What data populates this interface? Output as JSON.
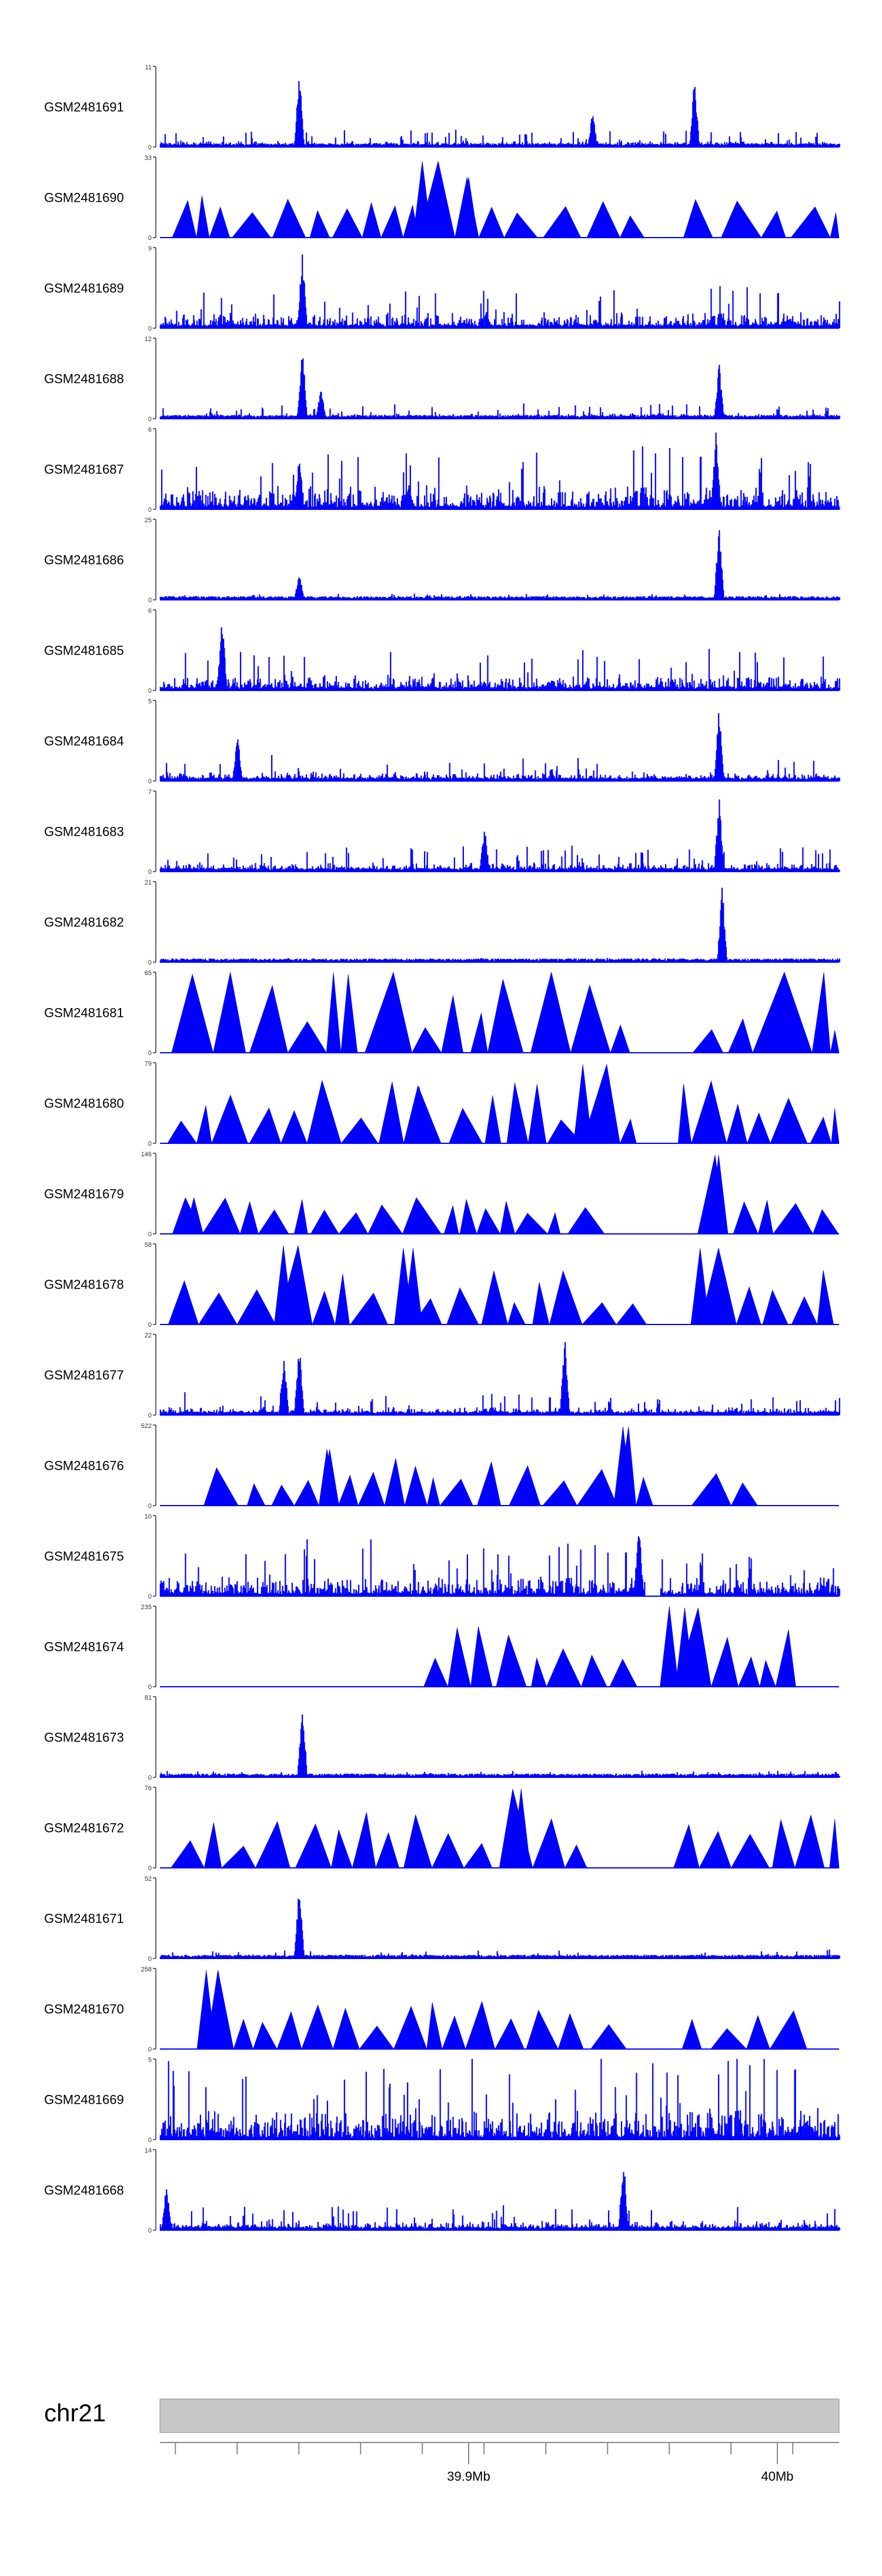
{
  "chart_data": {
    "type": "area",
    "chromosome": "chr21",
    "genome_axis": {
      "range": [
        39.8,
        40.02
      ],
      "unit": "Mb",
      "labeled_ticks": [
        39.9,
        40.0
      ],
      "labels": [
        "39.9Mb",
        "40Mb"
      ],
      "minor_ticks": [
        39.805,
        39.825,
        39.845,
        39.865,
        39.885,
        39.905,
        39.925,
        39.945,
        39.965,
        39.985,
        40.005,
        40.025
      ]
    },
    "tracks": [
      {
        "name": "GSM2481691",
        "ymax": 11,
        "ymin": 0,
        "style": "dense",
        "seed": 91,
        "noise": 0.08,
        "peaks": [
          [
            39.845,
            1.0
          ],
          [
            39.973,
            0.9
          ],
          [
            39.94,
            0.45
          ]
        ],
        "gaps": []
      },
      {
        "name": "GSM2481690",
        "ymax": 33,
        "ymin": 0,
        "style": "triangles",
        "seed": 90,
        "noise": 0.3,
        "peaks": [
          [
            39.885,
            0.95
          ],
          [
            39.9,
            0.75
          ]
        ],
        "gaps": [
          [
            39.958,
            39.968
          ]
        ]
      },
      {
        "name": "GSM2481689",
        "ymax": 9,
        "ymin": 0,
        "style": "dense",
        "seed": 89,
        "noise": 0.2,
        "peaks": [
          [
            39.846,
            0.95
          ]
        ],
        "gaps": []
      },
      {
        "name": "GSM2481688",
        "ymax": 12,
        "ymin": 0,
        "style": "dense",
        "seed": 88,
        "noise": 0.07,
        "peaks": [
          [
            39.846,
            0.98
          ],
          [
            39.981,
            0.72
          ],
          [
            39.852,
            0.4
          ]
        ],
        "gaps": []
      },
      {
        "name": "GSM2481687",
        "ymax": 6,
        "ymin": 0,
        "style": "dense",
        "seed": 87,
        "noise": 0.3,
        "peaks": [
          [
            39.98,
            0.98
          ],
          [
            39.845,
            0.7
          ]
        ],
        "gaps": []
      },
      {
        "name": "GSM2481686",
        "ymax": 25,
        "ymin": 0,
        "style": "dense",
        "seed": 86,
        "noise": 0.03,
        "peaks": [
          [
            39.981,
            0.98
          ],
          [
            39.845,
            0.35
          ]
        ],
        "gaps": []
      },
      {
        "name": "GSM2481685",
        "ymax": 6,
        "ymin": 0,
        "style": "dense",
        "seed": 85,
        "noise": 0.2,
        "peaks": [
          [
            39.82,
            0.95
          ]
        ],
        "gaps": []
      },
      {
        "name": "GSM2481684",
        "ymax": 5,
        "ymin": 0,
        "style": "dense",
        "seed": 84,
        "noise": 0.12,
        "peaks": [
          [
            39.981,
            0.98
          ],
          [
            39.825,
            0.6
          ]
        ],
        "gaps": []
      },
      {
        "name": "GSM2481683",
        "ymax": 7,
        "ymin": 0,
        "style": "dense",
        "seed": 83,
        "noise": 0.12,
        "peaks": [
          [
            39.981,
            0.95
          ],
          [
            39.905,
            0.6
          ]
        ],
        "gaps": []
      },
      {
        "name": "GSM2481682",
        "ymax": 21,
        "ymin": 0,
        "style": "dense",
        "seed": 82,
        "noise": 0.02,
        "peaks": [
          [
            39.982,
            0.98
          ]
        ],
        "gaps": []
      },
      {
        "name": "GSM2481681",
        "ymax": 65,
        "ymin": 0,
        "style": "triangles",
        "seed": 81,
        "noise": 1.0,
        "peaks": [],
        "gaps": [
          [
            39.958,
            39.97
          ]
        ]
      },
      {
        "name": "GSM2481680",
        "ymax": 79,
        "ymin": 0,
        "style": "triangles",
        "seed": 80,
        "noise": 0.55,
        "peaks": [
          [
            39.937,
            0.98
          ],
          [
            39.884,
            0.7
          ]
        ],
        "gaps": [
          [
            39.96,
            39.967
          ]
        ]
      },
      {
        "name": "GSM2481679",
        "ymax": 146,
        "ymin": 0,
        "style": "triangles",
        "seed": 79,
        "noise": 0.2,
        "peaks": [
          [
            39.981,
            0.98
          ],
          [
            39.811,
            0.45
          ]
        ],
        "gaps": [
          [
            39.945,
            39.972
          ]
        ]
      },
      {
        "name": "GSM2481678",
        "ymax": 58,
        "ymin": 0,
        "style": "triangles",
        "seed": 78,
        "noise": 0.5,
        "peaks": [
          [
            39.84,
            0.98
          ],
          [
            39.882,
            0.95
          ],
          [
            39.975,
            0.95
          ]
        ],
        "gaps": [
          [
            39.96,
            39.968
          ]
        ]
      },
      {
        "name": "GSM2481677",
        "ymax": 22,
        "ymin": 0,
        "style": "dense",
        "seed": 77,
        "noise": 0.1,
        "peaks": [
          [
            39.931,
            0.98
          ],
          [
            39.84,
            0.8
          ],
          [
            39.845,
            0.95
          ]
        ],
        "gaps": []
      },
      {
        "name": "GSM2481676",
        "ymax": 522,
        "ymin": 0,
        "style": "triangles",
        "seed": 76,
        "noise": 0.35,
        "peaks": [
          [
            39.95,
            0.98
          ],
          [
            39.855,
            0.7
          ]
        ],
        "gaps": [
          [
            39.8,
            39.81
          ],
          [
            39.963,
            39.968
          ],
          [
            39.995,
            40.02
          ]
        ]
      },
      {
        "name": "GSM2481675",
        "ymax": 10,
        "ymin": 0,
        "style": "dense",
        "seed": 75,
        "noise": 0.25,
        "peaks": [
          [
            39.955,
            0.95
          ]
        ],
        "gaps": [
          [
            39.957,
            39.962
          ]
        ]
      },
      {
        "name": "GSM2481674",
        "ymax": 235,
        "ymin": 0,
        "style": "triangles",
        "seed": 74,
        "noise": 0.5,
        "peaks": [
          [
            39.965,
            1.0
          ],
          [
            39.97,
            0.98
          ]
        ],
        "gaps": [
          [
            39.8,
            39.878
          ],
          [
            39.957,
            39.963
          ],
          [
            40.011,
            40.02
          ]
        ]
      },
      {
        "name": "GSM2481673",
        "ymax": 81,
        "ymin": 0,
        "style": "dense",
        "seed": 73,
        "noise": 0.03,
        "peaks": [
          [
            39.846,
            0.98
          ]
        ],
        "gaps": []
      },
      {
        "name": "GSM2481672",
        "ymax": 76,
        "ymin": 0,
        "style": "triangles",
        "seed": 72,
        "noise": 0.45,
        "peaks": [
          [
            39.917,
            0.98
          ]
        ],
        "gaps": [
          [
            39.948,
            39.963
          ]
        ]
      },
      {
        "name": "GSM2481671",
        "ymax": 52,
        "ymin": 0,
        "style": "dense",
        "seed": 71,
        "noise": 0.04,
        "peaks": [
          [
            39.845,
            0.95
          ]
        ],
        "gaps": []
      },
      {
        "name": "GSM2481670",
        "ymax": 258,
        "ymin": 0,
        "style": "triangles",
        "seed": 70,
        "noise": 0.35,
        "peaks": [
          [
            39.815,
            0.98
          ],
          [
            39.819,
            0.95
          ]
        ],
        "gaps": [
          [
            39.8,
            39.808
          ],
          [
            39.955,
            39.965
          ],
          [
            40.016,
            40.02
          ]
        ]
      },
      {
        "name": "GSM2481669",
        "ymax": 5,
        "ymin": 0,
        "style": "dense",
        "seed": 69,
        "noise": 0.4,
        "peaks": [],
        "gaps": []
      },
      {
        "name": "GSM2481668",
        "ymax": 14,
        "ymin": 0,
        "style": "dense",
        "seed": 68,
        "noise": 0.12,
        "peaks": [
          [
            39.95,
            0.95
          ],
          [
            39.802,
            0.6
          ]
        ],
        "gaps": []
      }
    ],
    "colors": {
      "signal": "#0000ff",
      "ideogram_fill": "#c8c8c8",
      "axis": "#333333",
      "text": "#000000"
    }
  }
}
